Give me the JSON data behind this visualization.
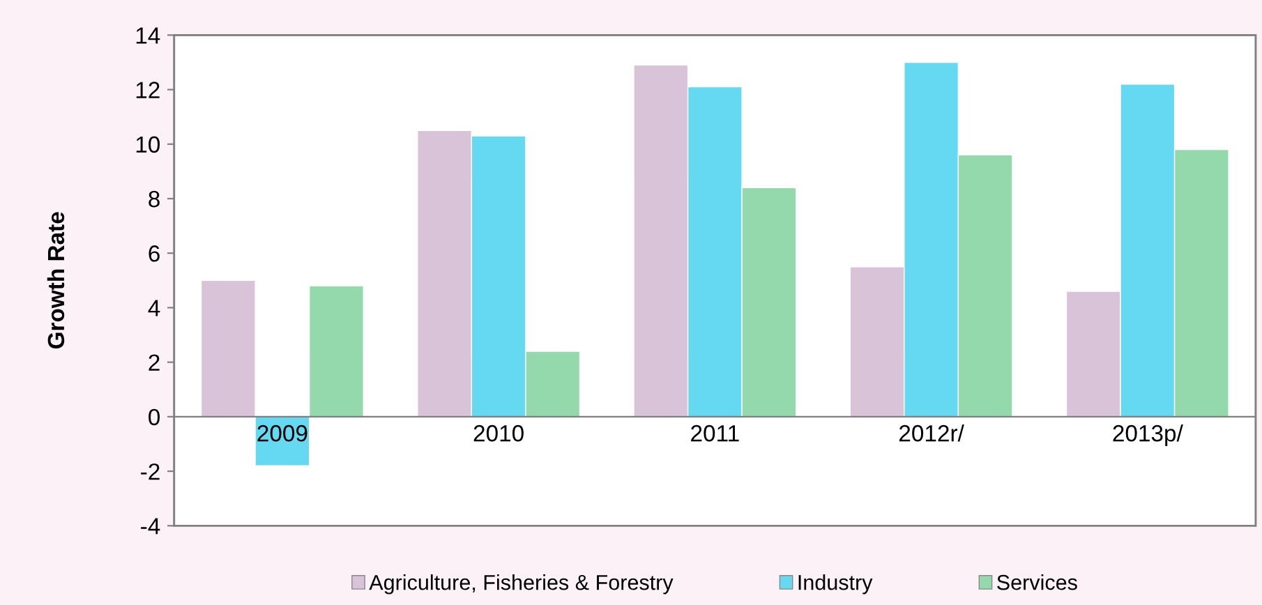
{
  "chart_data": {
    "type": "bar",
    "ylabel": "Growth Rate",
    "categories": [
      "2009",
      "2010",
      "2011",
      "2012r/",
      "2013p/"
    ],
    "series": [
      {
        "name": "Agriculture, Fisheries & Forestry",
        "color": "#d9c3d9",
        "values": [
          5.0,
          10.5,
          12.9,
          5.5,
          4.6
        ]
      },
      {
        "name": "Industry",
        "color": "#66d9f2",
        "values": [
          -1.8,
          10.3,
          12.1,
          13.0,
          12.2
        ]
      },
      {
        "name": "Services",
        "color": "#93d9ab",
        "values": [
          4.8,
          2.4,
          8.4,
          9.6,
          9.8
        ]
      }
    ],
    "ylim": [
      -4,
      14
    ],
    "yticks": [
      -4,
      -2,
      0,
      2,
      4,
      6,
      8,
      10,
      12,
      14
    ],
    "grid": false,
    "legend": "bottom"
  }
}
